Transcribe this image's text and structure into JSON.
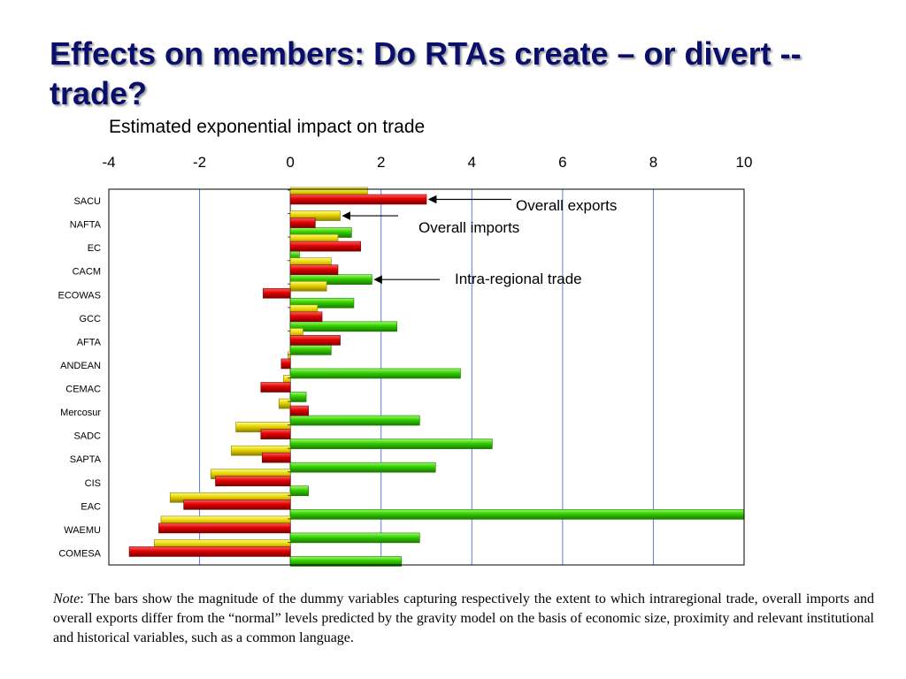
{
  "slide": {
    "title": "Effects on members:  Do RTAs create – or divert -- trade?"
  },
  "note": {
    "label": "Note",
    "text": ": The bars show the magnitude of the dummy variables capturing respectively the extent to which intraregional trade, overall imports and overall exports differ from the “normal” levels predicted by the gravity model on the basis of economic size, proximity and relevant institutional and historical variables, such as a common language."
  },
  "colors": {
    "intra_regional": "#33cc00",
    "overall_imports": "#e6d200",
    "overall_exports": "#e00000",
    "gridline": "#5b7be0"
  },
  "chart_data": {
    "type": "bar",
    "orientation": "horizontal",
    "title": "Estimated exponential impact on trade",
    "xlim": [
      -4,
      10
    ],
    "xticks": [
      "-4",
      "-2",
      "0",
      "2",
      "4",
      "6",
      "8",
      "10"
    ],
    "grid": true,
    "categories": [
      "SACU",
      "NAFTA",
      "EC",
      "CACM",
      "ECOWAS",
      "GCC",
      "AFTA",
      "ANDEAN",
      "CEMAC",
      "Mercosur",
      "SADC",
      "SAPTA",
      "CIS",
      "EAC",
      "WAEMU",
      "COMESA"
    ],
    "series": [
      {
        "name": "Overall imports",
        "key": "imports",
        "values": [
          1.7,
          1.1,
          1.05,
          0.9,
          0.8,
          0.6,
          0.28,
          -0.05,
          -0.15,
          -0.25,
          -1.2,
          -1.3,
          -1.75,
          -2.65,
          -2.85,
          -3.0
        ]
      },
      {
        "name": "Overall exports",
        "key": "exports",
        "values": [
          3.0,
          0.55,
          1.55,
          1.05,
          -0.6,
          0.7,
          1.1,
          -0.2,
          -0.65,
          0.4,
          -0.65,
          -0.62,
          -1.65,
          -2.35,
          -2.9,
          -3.55
        ]
      },
      {
        "name": "Intra-regional trade",
        "key": "intra",
        "values": null
      }
    ],
    "intra_values": [
      null,
      1.35,
      0.2,
      1.8,
      1.4,
      2.35,
      0.9,
      3.75,
      0.35,
      2.85,
      4.45,
      3.2,
      0.4,
      10.0,
      2.85,
      2.45
    ],
    "annotations": [
      {
        "text": "Overall exports",
        "target_series": "exports",
        "target_category": "SACU"
      },
      {
        "text": "Overall imports",
        "target_series": "imports",
        "target_category": "NAFTA"
      },
      {
        "text": "Intra-regional trade",
        "target_series": "intra",
        "target_category": "CACM"
      }
    ]
  }
}
